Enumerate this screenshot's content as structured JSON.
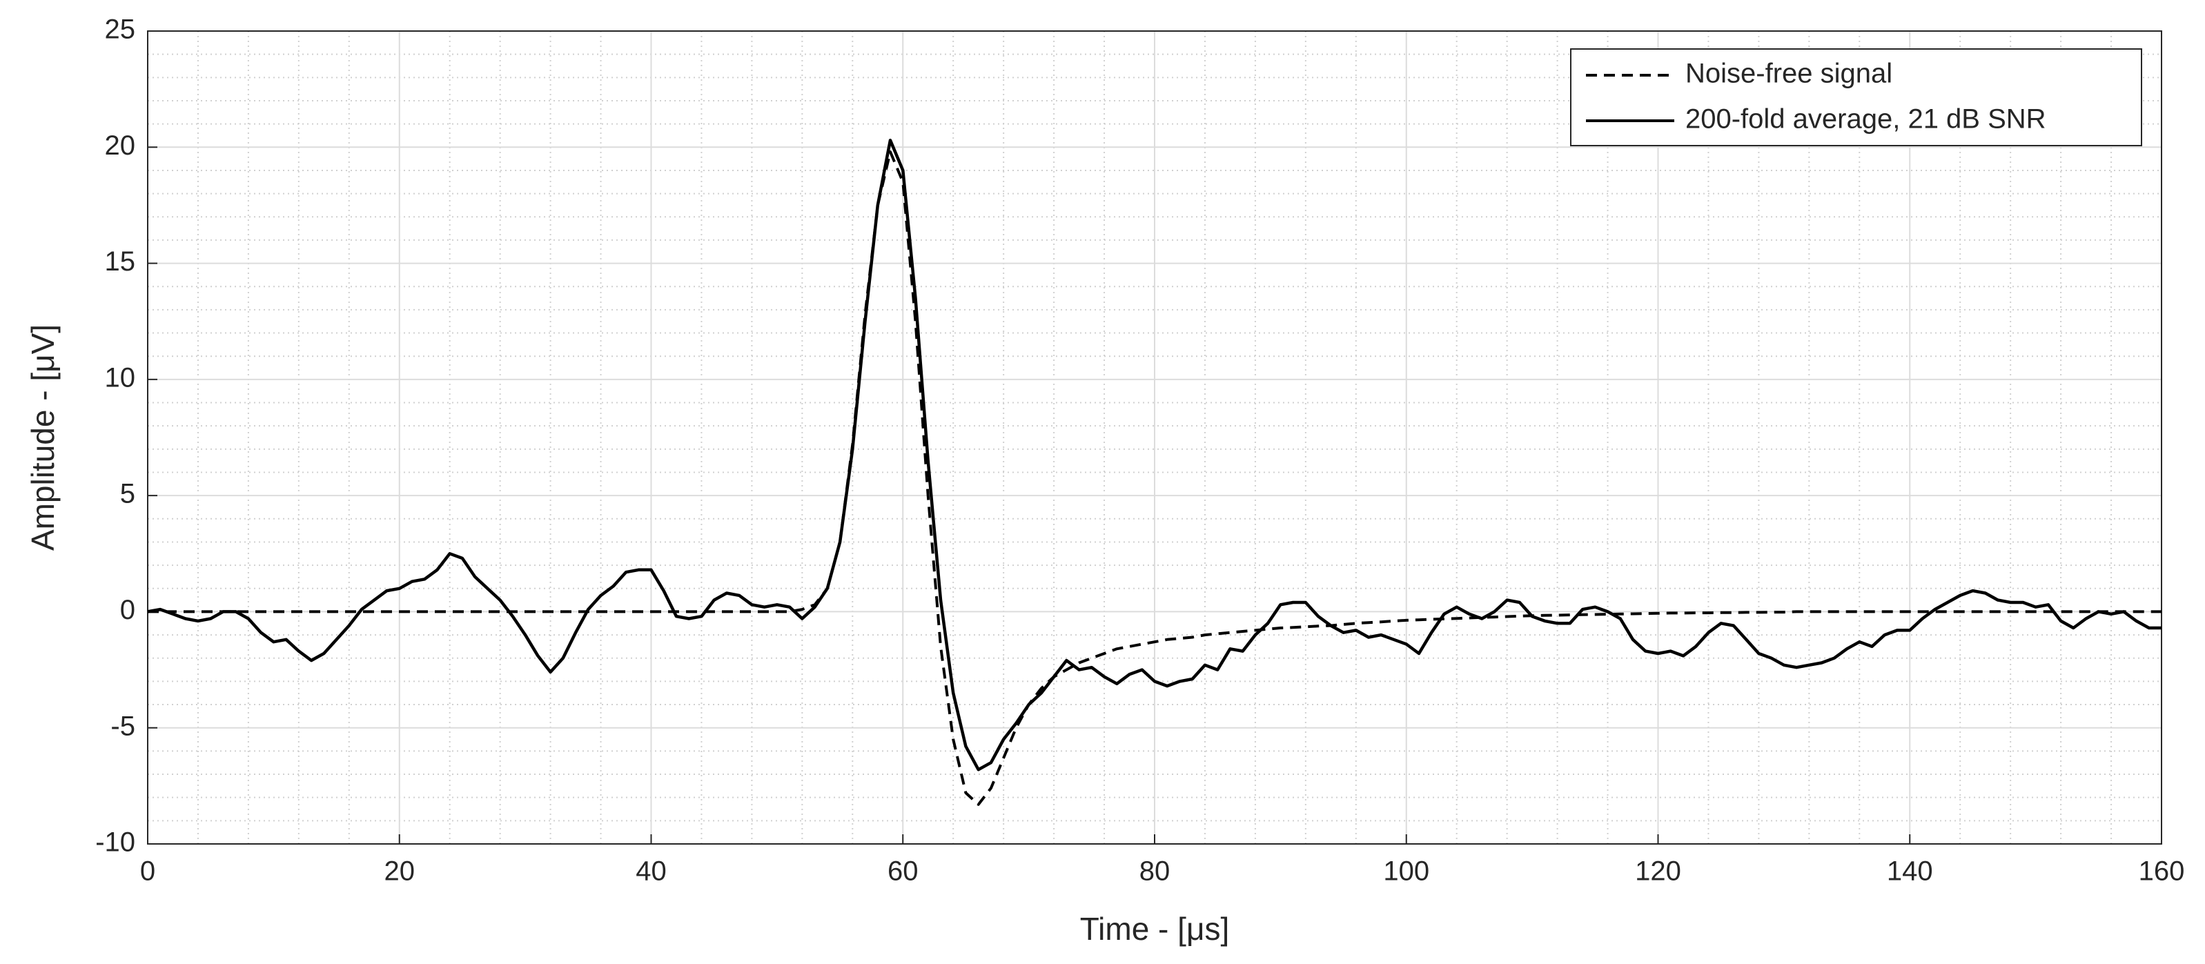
{
  "chart_data": {
    "type": "line",
    "xlabel": "Time - [μs]",
    "ylabel": "Amplitude - [μV]",
    "x": [
      0,
      1,
      2,
      3,
      4,
      5,
      6,
      7,
      8,
      9,
      10,
      11,
      12,
      13,
      14,
      15,
      16,
      17,
      18,
      19,
      20,
      21,
      22,
      23,
      24,
      25,
      26,
      27,
      28,
      29,
      30,
      31,
      32,
      33,
      34,
      35,
      36,
      37,
      38,
      39,
      40,
      41,
      42,
      43,
      44,
      45,
      46,
      47,
      48,
      49,
      50,
      51,
      52,
      53,
      54,
      55,
      56,
      57,
      58,
      59,
      60,
      61,
      62,
      63,
      64,
      65,
      66,
      67,
      68,
      69,
      70,
      71,
      72,
      73,
      74,
      75,
      76,
      77,
      78,
      79,
      80,
      81,
      82,
      83,
      84,
      85,
      86,
      87,
      88,
      89,
      90,
      91,
      92,
      93,
      94,
      95,
      96,
      97,
      98,
      99,
      100,
      101,
      102,
      103,
      104,
      105,
      106,
      107,
      108,
      109,
      110,
      111,
      112,
      113,
      114,
      115,
      116,
      117,
      118,
      119,
      120,
      121,
      122,
      123,
      124,
      125,
      126,
      127,
      128,
      129,
      130,
      131,
      132,
      133,
      134,
      135,
      136,
      137,
      138,
      139,
      140,
      141,
      142,
      143,
      144,
      145,
      146,
      147,
      148,
      149,
      150,
      151,
      152,
      153,
      154,
      155,
      156,
      157,
      158,
      159,
      160
    ],
    "series": [
      {
        "name": "Noise-free signal",
        "color": "#000000",
        "style": "dashed",
        "values": [
          0,
          0,
          0,
          0,
          0,
          0,
          0,
          0,
          0,
          0,
          0,
          0,
          0,
          0,
          0,
          0,
          0,
          0,
          0,
          0,
          0,
          0,
          0,
          0,
          0,
          0,
          0,
          0,
          0,
          0,
          0,
          0,
          0,
          0,
          0,
          0,
          0,
          0,
          0,
          0,
          0,
          0,
          0,
          0,
          0,
          0,
          0,
          0,
          0,
          0,
          0,
          0,
          0.1,
          0.3,
          1.0,
          3.0,
          7.2,
          12.8,
          17.5,
          19.8,
          18.5,
          12.5,
          5.0,
          -1.5,
          -5.5,
          -7.8,
          -8.3,
          -7.6,
          -6.3,
          -5.0,
          -4.0,
          -3.3,
          -2.8,
          -2.5,
          -2.2,
          -2.0,
          -1.8,
          -1.6,
          -1.5,
          -1.4,
          -1.3,
          -1.2,
          -1.15,
          -1.1,
          -1.0,
          -0.95,
          -0.9,
          -0.85,
          -0.8,
          -0.75,
          -0.7,
          -0.68,
          -0.65,
          -0.62,
          -0.6,
          -0.55,
          -0.5,
          -0.47,
          -0.44,
          -0.4,
          -0.37,
          -0.35,
          -0.33,
          -0.31,
          -0.29,
          -0.27,
          -0.25,
          -0.23,
          -0.21,
          -0.19,
          -0.17,
          -0.16,
          -0.15,
          -0.14,
          -0.13,
          -0.12,
          -0.11,
          -0.1,
          -0.09,
          -0.08,
          -0.07,
          -0.06,
          -0.06,
          -0.05,
          -0.05,
          -0.04,
          -0.04,
          -0.03,
          -0.03,
          -0.02,
          -0.02,
          0,
          0,
          0,
          0,
          0,
          0,
          0,
          0,
          0,
          0,
          0,
          0,
          0,
          0,
          0,
          0,
          0,
          0,
          0,
          0,
          0,
          0,
          0,
          0,
          0,
          0,
          0,
          0,
          0,
          0
        ]
      },
      {
        "name": "200-fold average, 21 dB SNR",
        "color": "#000000",
        "style": "solid",
        "values": [
          0,
          0.1,
          -0.1,
          -0.3,
          -0.4,
          -0.3,
          0,
          0,
          -0.3,
          -0.9,
          -1.3,
          -1.2,
          -1.7,
          -2.1,
          -1.8,
          -1.2,
          -0.6,
          0.1,
          0.5,
          0.9,
          1.0,
          1.3,
          1.4,
          1.8,
          2.5,
          2.3,
          1.5,
          1.0,
          0.5,
          -0.2,
          -1.0,
          -1.9,
          -2.6,
          -2.0,
          -0.9,
          0.1,
          0.7,
          1.1,
          1.7,
          1.8,
          1.8,
          0.9,
          -0.2,
          -0.3,
          -0.2,
          0.5,
          0.8,
          0.7,
          0.3,
          0.2,
          0.3,
          0.2,
          -0.3,
          0.2,
          1.0,
          3.0,
          7.0,
          12.5,
          17.5,
          20.3,
          19.0,
          13.5,
          6.5,
          0.5,
          -3.5,
          -5.8,
          -6.8,
          -6.5,
          -5.5,
          -4.8,
          -4.0,
          -3.5,
          -2.8,
          -2.1,
          -2.5,
          -2.4,
          -2.8,
          -3.1,
          -2.7,
          -2.5,
          -3.0,
          -3.2,
          -3.0,
          -2.9,
          -2.3,
          -2.5,
          -1.6,
          -1.7,
          -1.0,
          -0.5,
          0.3,
          0.4,
          0.4,
          -0.2,
          -0.6,
          -0.9,
          -0.8,
          -1.1,
          -1.0,
          -1.2,
          -1.4,
          -1.8,
          -0.9,
          -0.1,
          0.2,
          -0.1,
          -0.3,
          0,
          0.5,
          0.4,
          -0.2,
          -0.4,
          -0.5,
          -0.5,
          0.1,
          0.2,
          0,
          -0.3,
          -1.2,
          -1.7,
          -1.8,
          -1.7,
          -1.9,
          -1.5,
          -0.9,
          -0.5,
          -0.6,
          -1.2,
          -1.8,
          -2.0,
          -2.3,
          -2.4,
          -2.3,
          -2.2,
          -2.0,
          -1.6,
          -1.3,
          -1.5,
          -1.0,
          -0.8,
          -0.8,
          -0.3,
          0.1,
          0.4,
          0.7,
          0.9,
          0.8,
          0.5,
          0.4,
          0.4,
          0.2,
          0.3,
          -0.4,
          -0.7,
          -0.3,
          0,
          -0.1,
          0,
          -0.4,
          -0.7,
          -0.7
        ]
      }
    ],
    "xlim": [
      0,
      160
    ],
    "xticks": [
      0,
      20,
      40,
      60,
      80,
      100,
      120,
      140,
      160
    ],
    "ylim": [
      -10,
      25
    ],
    "yticks": [
      -10,
      -5,
      0,
      5,
      10,
      15,
      20,
      25
    ],
    "grid": true,
    "minor_grid": true,
    "legend": "upper right"
  }
}
